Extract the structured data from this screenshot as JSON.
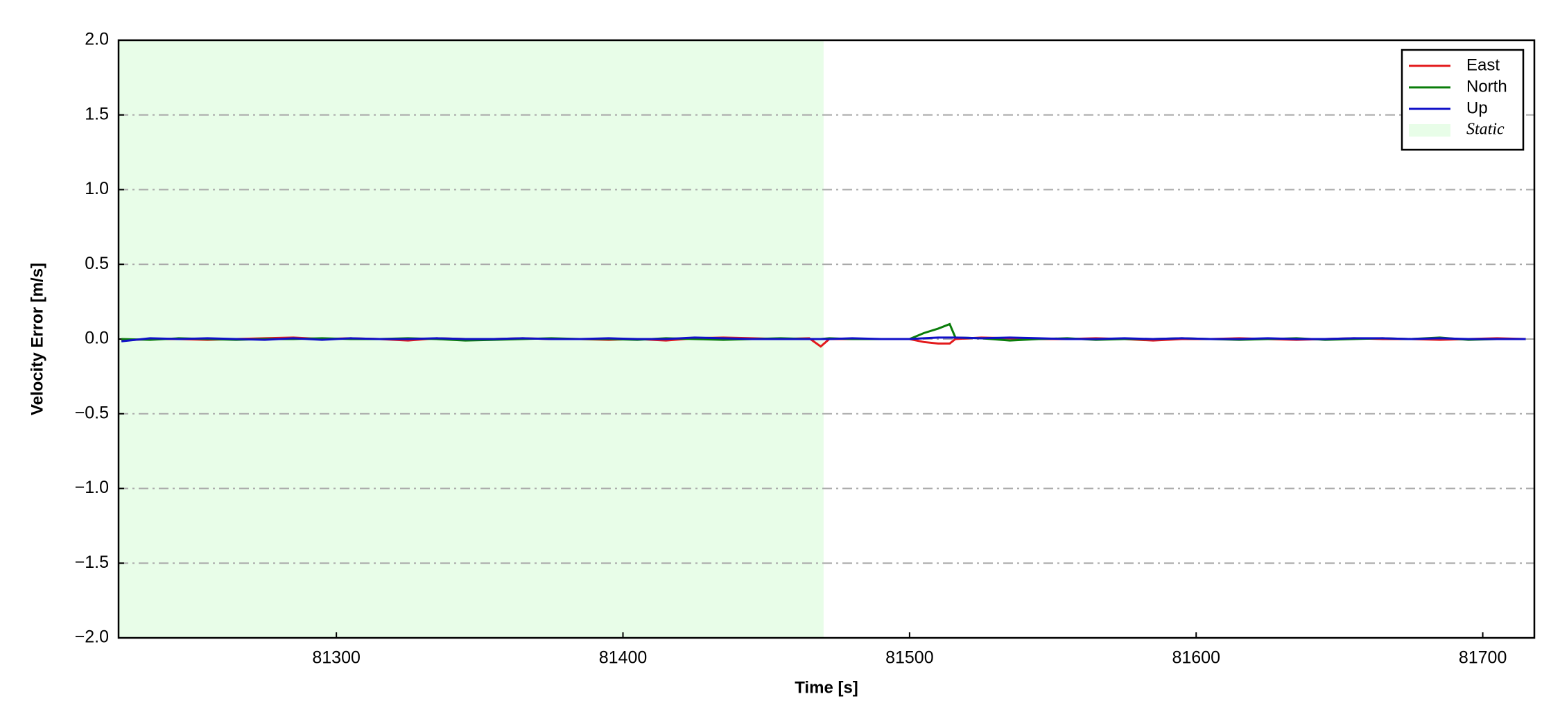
{
  "chart_data": {
    "type": "line",
    "xlabel": "Time [s]",
    "ylabel": "Velocity Error [m/s]",
    "x": [
      81225,
      81235,
      81245,
      81255,
      81265,
      81275,
      81285,
      81295,
      81305,
      81315,
      81325,
      81335,
      81345,
      81355,
      81365,
      81375,
      81385,
      81395,
      81405,
      81415,
      81425,
      81435,
      81445,
      81455,
      81465,
      81469,
      81472,
      81480,
      81490,
      81500,
      81505,
      81510,
      81514,
      81516,
      81525,
      81535,
      81545,
      81555,
      81565,
      81575,
      81585,
      81595,
      81605,
      81615,
      81625,
      81635,
      81645,
      81655,
      81665,
      81675,
      81685,
      81695,
      81705,
      81715
    ],
    "series": [
      {
        "name": "East",
        "color": "#e31a1c",
        "values": [
          -0.01,
          0,
          0,
          -0.005,
          0,
          0.005,
          0.01,
          0,
          0.005,
          0,
          -0.01,
          0.005,
          0,
          0,
          0.005,
          0,
          0,
          -0.005,
          0,
          -0.01,
          0.005,
          0.01,
          0.005,
          0,
          0.005,
          -0.05,
          0,
          0,
          0,
          0,
          -0.02,
          -0.03,
          -0.03,
          0,
          0.01,
          0.005,
          0,
          0,
          0.005,
          0,
          -0.01,
          0,
          0,
          0.005,
          0,
          -0.005,
          0,
          0.005,
          0,
          0,
          -0.005,
          0,
          0.005,
          0
        ]
      },
      {
        "name": "North",
        "color": "#0a7d0a",
        "values": [
          0,
          -0.005,
          0.005,
          0,
          -0.005,
          0,
          0,
          0.005,
          0,
          0,
          0.005,
          0,
          -0.01,
          -0.005,
          0,
          0.005,
          0,
          0,
          -0.005,
          0.005,
          0,
          -0.005,
          0,
          0.005,
          0,
          0,
          0.005,
          0,
          0,
          0,
          0.04,
          0.07,
          0.1,
          0.01,
          0.005,
          -0.01,
          0,
          0.005,
          -0.005,
          0,
          0,
          0.005,
          0,
          -0.005,
          0,
          0.005,
          -0.005,
          0,
          0.005,
          0,
          0.01,
          -0.005,
          0,
          0
        ]
      },
      {
        "name": "Up",
        "color": "#1010c8",
        "values": [
          -0.015,
          0.005,
          0,
          0.005,
          0,
          -0.005,
          0.005,
          -0.005,
          0.005,
          0,
          0,
          0.005,
          0,
          0,
          0.005,
          0,
          0,
          0.005,
          0,
          0,
          0.01,
          0.005,
          0,
          0,
          0,
          0,
          0,
          0.005,
          0,
          0,
          0.005,
          0.01,
          0.01,
          0.01,
          0.005,
          0.01,
          0.005,
          0,
          0,
          0.005,
          0,
          0.005,
          0,
          0,
          0.005,
          0,
          0,
          0.005,
          0.005,
          0,
          0.005,
          0,
          0,
          0
        ]
      }
    ],
    "shaded_region": {
      "name": "Static",
      "xlim": [
        81224,
        81470
      ],
      "color": "#e8fde8"
    },
    "xlim": [
      81224,
      81718
    ],
    "xticks": [
      81300,
      81400,
      81500,
      81600,
      81700
    ],
    "ylim": [
      -2,
      2
    ],
    "yticks": [
      {
        "value": -2,
        "label": "−2.0"
      },
      {
        "value": -1.5,
        "label": "−1.5"
      },
      {
        "value": -1,
        "label": "−1.0"
      },
      {
        "value": -0.5,
        "label": "−0.5"
      },
      {
        "value": 0,
        "label": "0.0"
      },
      0.5,
      {
        "value": 1,
        "label": "1.0"
      },
      1.5,
      {
        "value": 2,
        "label": "2.0"
      }
    ],
    "grid": true,
    "legend": "upper right"
  }
}
